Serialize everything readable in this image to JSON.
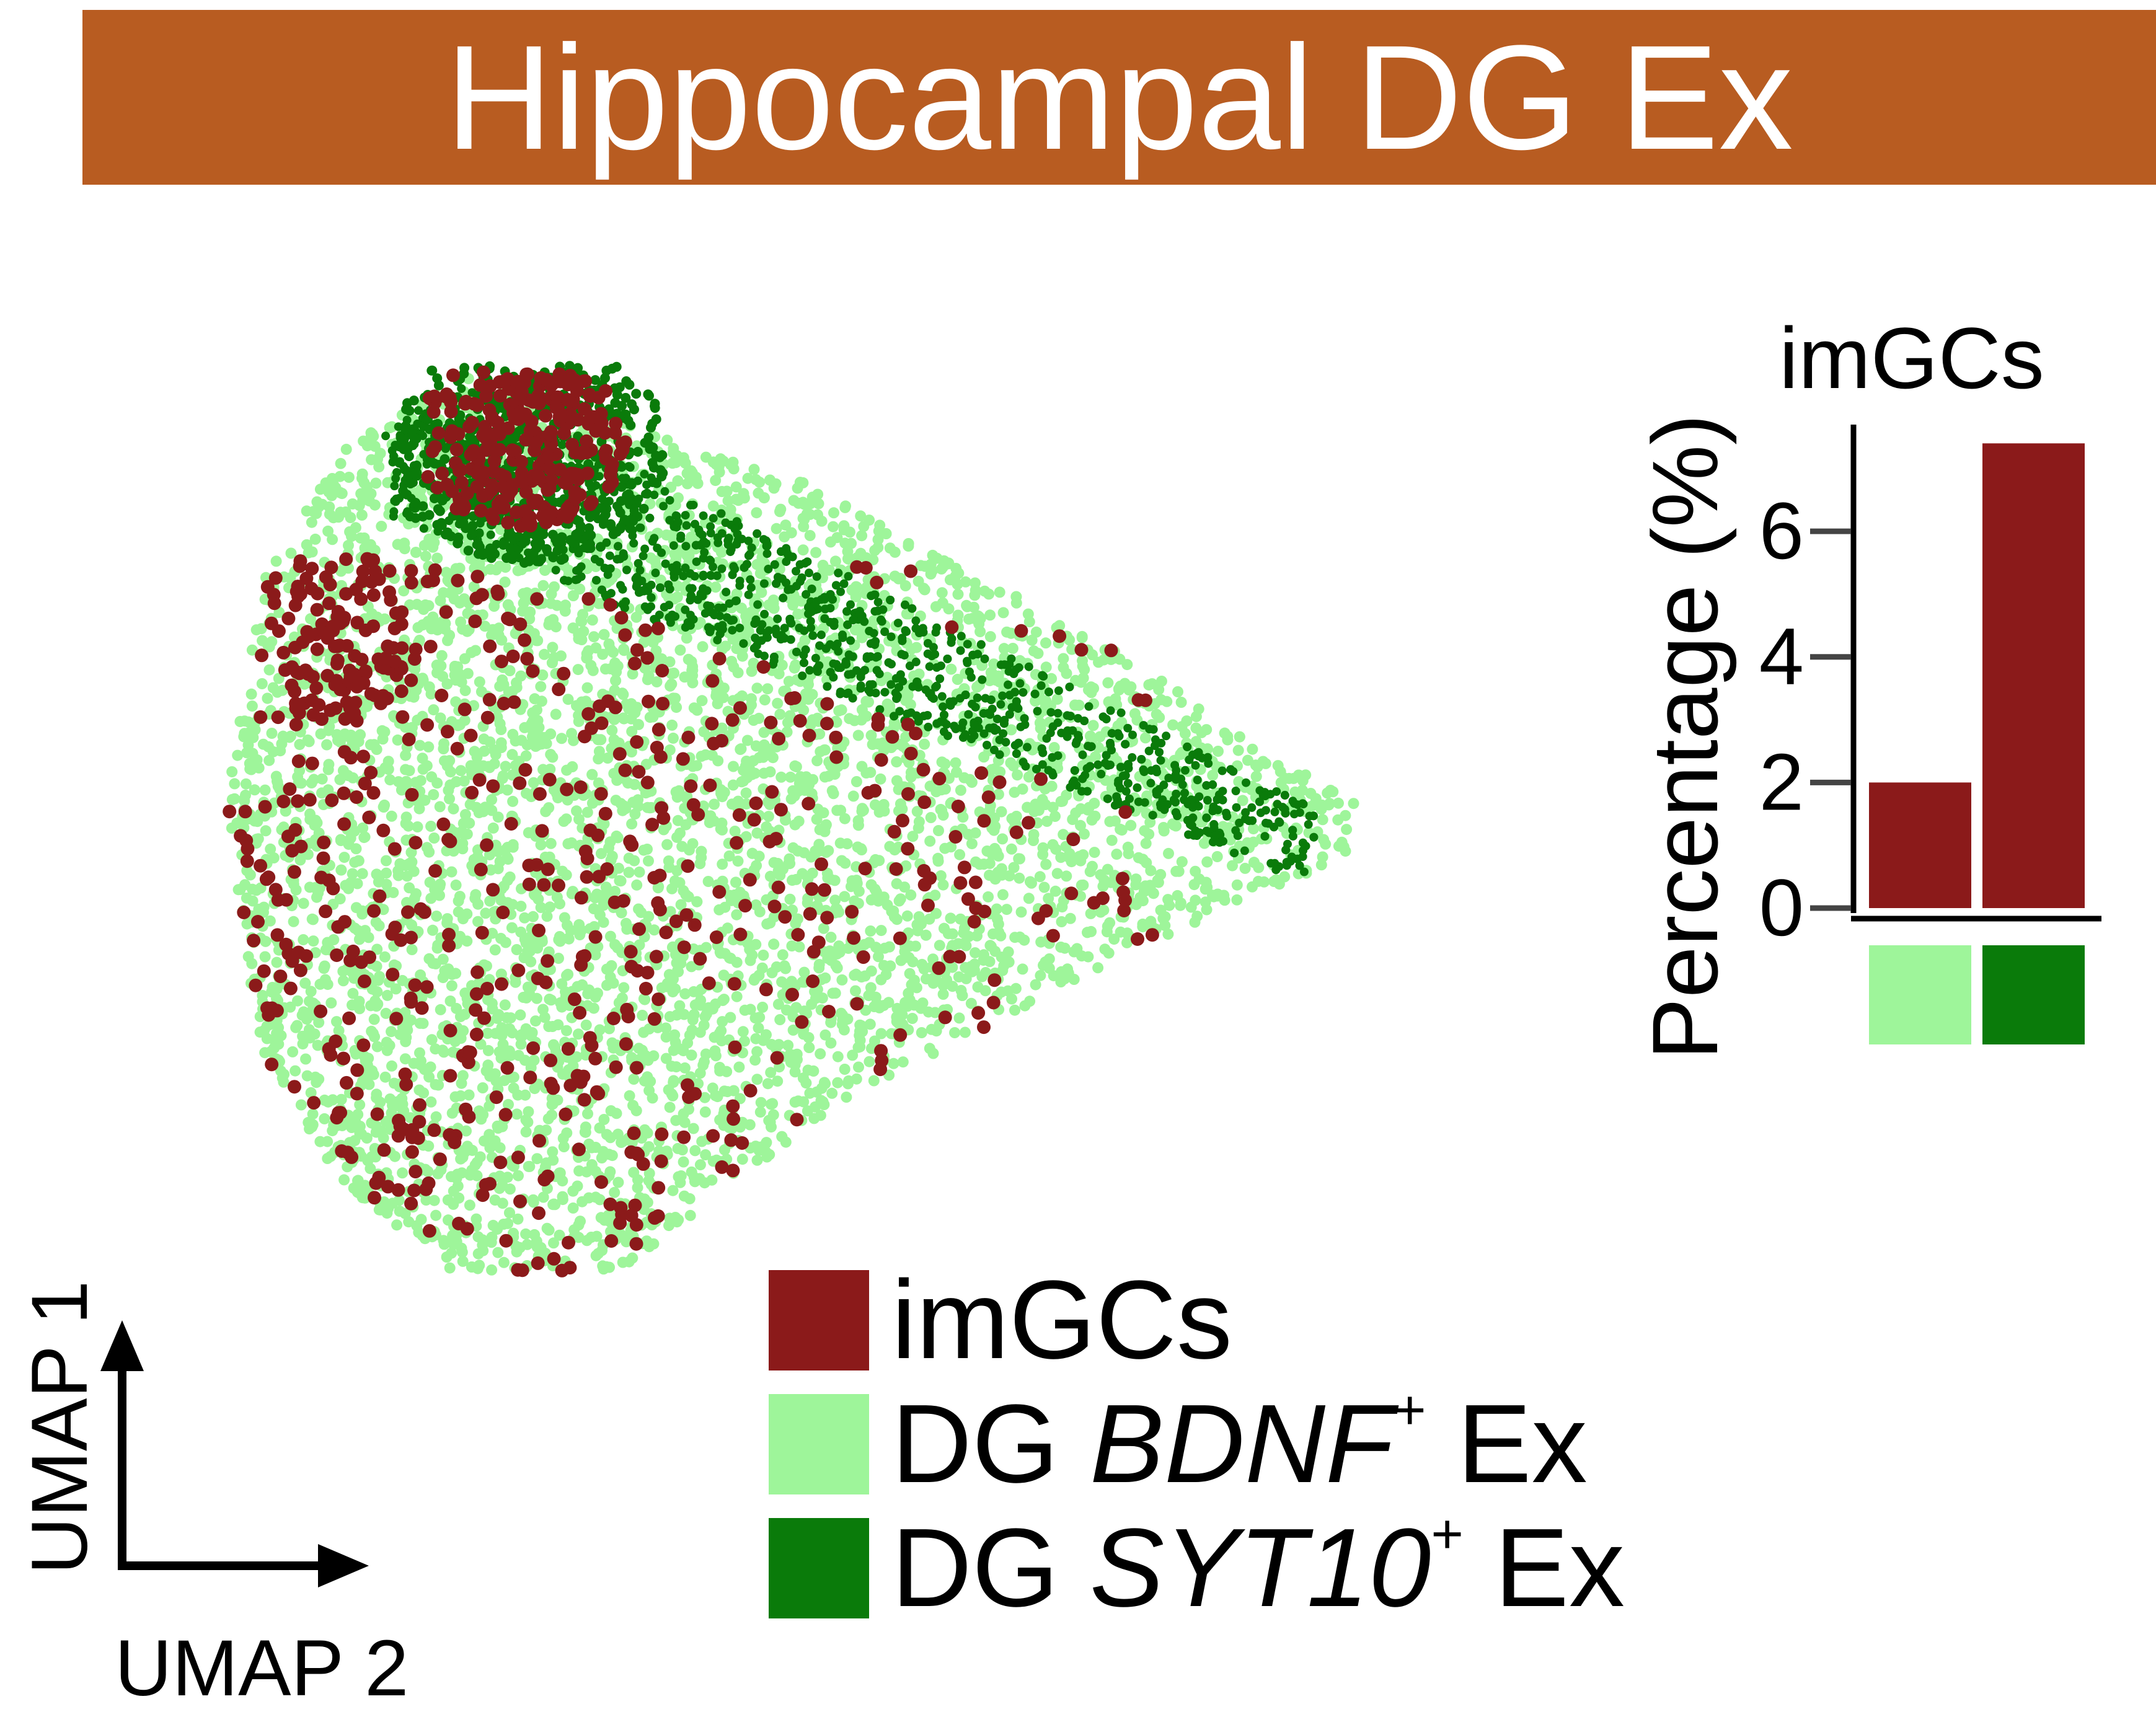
{
  "title": "Hippocampal DG Ex",
  "colors": {
    "banner": "#b85c21",
    "imGCs": "#8b1a1a",
    "bdnf": "#9ef59a",
    "syt10": "#0a7b0a",
    "axis": "#000000",
    "tick": "#444444"
  },
  "umap": {
    "xlabel": "UMAP 2",
    "ylabel": "UMAP 1"
  },
  "legend": [
    {
      "pre": "imGCs",
      "gene": "",
      "sup": "",
      "post": "",
      "color_key": "imGCs"
    },
    {
      "pre": "DG ",
      "gene": "BDNF",
      "sup": "+",
      "post": " Ex",
      "color_key": "bdnf"
    },
    {
      "pre": "DG ",
      "gene": "SYT10",
      "sup": "+",
      "post": " Ex",
      "color_key": "syt10"
    }
  ],
  "chart_data": [
    {
      "type": "scatter",
      "title": "",
      "xlabel": "UMAP 2",
      "ylabel": "UMAP 1",
      "series": [
        {
          "name": "DG BDNF+ Ex",
          "color": "#9ef59a"
        },
        {
          "name": "DG SYT10+ Ex",
          "color": "#0a7b0a"
        },
        {
          "name": "imGCs",
          "color": "#8b1a1a"
        }
      ],
      "legend": "bottom-right"
    },
    {
      "type": "bar",
      "title": "imGCs",
      "ylabel": "Percentage (%)",
      "categories": [
        "DG BDNF+ Ex",
        "DG SYT10+ Ex"
      ],
      "category_colors": [
        "#9ef59a",
        "#0a7b0a"
      ],
      "values": [
        2.0,
        7.4
      ],
      "bar_color": "#8b1a1a",
      "yticks": [
        0,
        2,
        4,
        6
      ],
      "ylim": [
        0,
        7.6
      ],
      "grid": false
    }
  ]
}
